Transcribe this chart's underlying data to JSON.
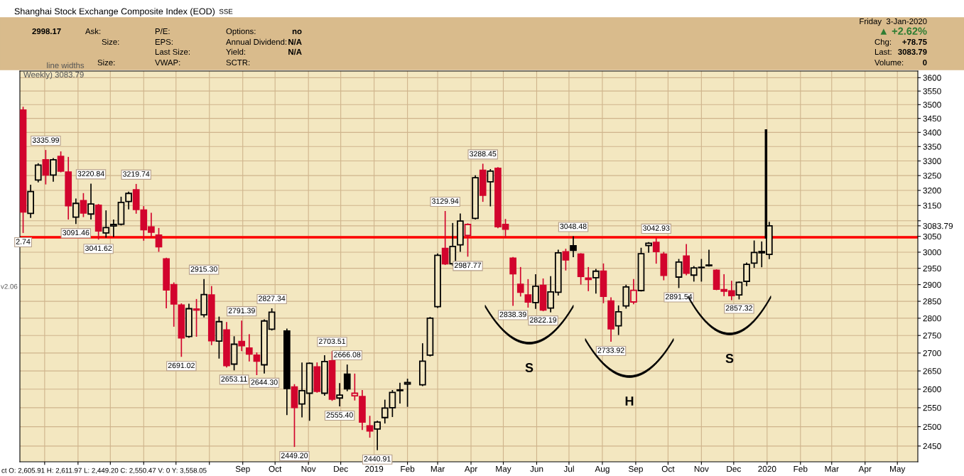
{
  "chart_data": {
    "type": "candlestick",
    "title": "Shanghai Stock Exchange Composite Index (EOD)",
    "subtitle": "SSE",
    "x": [
      "2018-02-09",
      "2018-02-16",
      "2018-02-23",
      "2018-03-02",
      "2018-03-09",
      "2018-03-16",
      "2018-03-23",
      "2018-03-30",
      "2018-04-06",
      "2018-04-13",
      "2018-04-20",
      "2018-04-27",
      "2018-05-04",
      "2018-05-11",
      "2018-05-18",
      "2018-05-25",
      "2018-06-01",
      "2018-06-08",
      "2018-06-15",
      "2018-06-22",
      "2018-06-29",
      "2018-07-06",
      "2018-07-13",
      "2018-07-20",
      "2018-07-27",
      "2018-08-03",
      "2018-08-10",
      "2018-08-17",
      "2018-08-24",
      "2018-08-31",
      "2018-09-07",
      "2018-09-14",
      "2018-09-21",
      "2018-09-28",
      "2018-10-12",
      "2018-10-19",
      "2018-10-26",
      "2018-11-02",
      "2018-11-09",
      "2018-11-16",
      "2018-11-23",
      "2018-11-30",
      "2018-12-07",
      "2018-12-14",
      "2018-12-21",
      "2018-12-28",
      "2019-01-04",
      "2019-01-11",
      "2019-01-18",
      "2019-01-25",
      "2019-02-01",
      "2019-02-15",
      "2019-02-22",
      "2019-03-01",
      "2019-03-08",
      "2019-03-15",
      "2019-03-22",
      "2019-03-29",
      "2019-04-05",
      "2019-04-12",
      "2019-04-19",
      "2019-04-26",
      "2019-05-03",
      "2019-05-10",
      "2019-05-17",
      "2019-05-24",
      "2019-05-31",
      "2019-06-07",
      "2019-06-14",
      "2019-06-21",
      "2019-06-28",
      "2019-07-05",
      "2019-07-12",
      "2019-07-19",
      "2019-07-26",
      "2019-08-02",
      "2019-08-09",
      "2019-08-16",
      "2019-08-23",
      "2019-08-30",
      "2019-09-06",
      "2019-09-13",
      "2019-09-20",
      "2019-09-27",
      "2019-10-11",
      "2019-10-18",
      "2019-10-25",
      "2019-11-01",
      "2019-11-08",
      "2019-11-15",
      "2019-11-22",
      "2019-11-29",
      "2019-12-06",
      "2019-12-13",
      "2019-12-20",
      "2019-12-27",
      "2020-01-03"
    ],
    "ohlc": [
      [
        3480,
        3490,
        3062.74,
        3129
      ],
      [
        3124,
        3217,
        3111,
        3196
      ],
      [
        3235,
        3290,
        3229,
        3286
      ],
      [
        3304,
        3335.99,
        3222,
        3252
      ],
      [
        3252,
        3308,
        3231,
        3304
      ],
      [
        3316,
        3331,
        3263,
        3265
      ],
      [
        3262,
        3312,
        3106,
        3149
      ],
      [
        3112,
        3171,
        3091.46,
        3157
      ],
      [
        3166,
        3189,
        3114,
        3125
      ],
      [
        3122,
        3220.84,
        3106,
        3155
      ],
      [
        3151,
        3153,
        3041.62,
        3067
      ],
      [
        3061,
        3132,
        3048,
        3078
      ],
      [
        3083,
        3102,
        3050,
        3088
      ],
      [
        3089,
        3177,
        3087,
        3160
      ],
      [
        3163,
        3194,
        3139,
        3190
      ],
      [
        3202,
        3219.74,
        3125,
        3137
      ],
      [
        3135,
        3146,
        3038,
        3071
      ],
      [
        3080,
        3124,
        3048,
        3063
      ],
      [
        3054,
        3075,
        3003,
        3017
      ],
      [
        2979,
        2981,
        2831,
        2884
      ],
      [
        2900,
        2905,
        2777,
        2842
      ],
      [
        2839,
        2842,
        2691.02,
        2743
      ],
      [
        2747,
        2841,
        2745,
        2828
      ],
      [
        2827,
        2855,
        2748,
        2824
      ],
      [
        2810,
        2915.3,
        2804,
        2870
      ],
      [
        2869,
        2894,
        2724,
        2735
      ],
      [
        2734,
        2803,
        2686,
        2790
      ],
      [
        2766,
        2787,
        2661,
        2665
      ],
      [
        2669,
        2746,
        2653.11,
        2725
      ],
      [
        2733,
        2791.39,
        2707,
        2721
      ],
      [
        2714,
        2752,
        2678,
        2697
      ],
      [
        2694,
        2700,
        2640,
        2677
      ],
      [
        2667,
        2795,
        2644.3,
        2792
      ],
      [
        2768,
        2827.34,
        2766,
        2818
      ],
      [
        2763,
        2768,
        2532,
        2602
      ],
      [
        2605.91,
        2611.97,
        2449.2,
        2550.47
      ],
      [
        2560,
        2672,
        2526,
        2596
      ],
      [
        2589,
        2672,
        2517,
        2671
      ],
      [
        2661,
        2672,
        2592,
        2594
      ],
      [
        2589,
        2692,
        2584,
        2676
      ],
      [
        2678,
        2703.51,
        2570,
        2573
      ],
      [
        2576,
        2615,
        2555.4,
        2584
      ],
      [
        2641,
        2666.08,
        2596,
        2601
      ],
      [
        2582,
        2641,
        2571,
        2589
      ],
      [
        2580,
        2596,
        2493,
        2512
      ],
      [
        2502,
        2527,
        2473,
        2489
      ],
      [
        2494,
        2514,
        2440.91,
        2512
      ],
      [
        2524,
        2570,
        2510,
        2549
      ],
      [
        2550,
        2596,
        2527,
        2591
      ],
      [
        2596,
        2616,
        2563,
        2598
      ],
      [
        2614,
        2627,
        2554,
        2618
      ],
      [
        2612,
        2726,
        2610,
        2677
      ],
      [
        2694,
        2802,
        2692,
        2800
      ],
      [
        2834,
        2994,
        2832,
        2990
      ],
      [
        3012,
        3129.94,
        2962,
        2964
      ],
      [
        2964,
        3091,
        2959,
        3018
      ],
      [
        3023,
        3122,
        3003,
        3099
      ],
      [
        3053,
        3090,
        2987.77,
        3088
      ],
      [
        3108,
        3249,
        3106,
        3243
      ],
      [
        3268,
        3288.45,
        3164,
        3184
      ],
      [
        3229,
        3270,
        3149,
        3265
      ],
      [
        3275,
        3277,
        3078,
        3081
      ],
      [
        3088,
        3104,
        3048,
        3073
      ],
      [
        2981,
        2983,
        2838.39,
        2933
      ],
      [
        2901,
        2952,
        2866,
        2877
      ],
      [
        2869,
        2915,
        2833,
        2848
      ],
      [
        2846,
        2930,
        2829,
        2895
      ],
      [
        2898,
        2917,
        2822.19,
        2824
      ],
      [
        2830,
        2924,
        2819,
        2878
      ],
      [
        2877,
        3006,
        2869,
        2998
      ],
      [
        3001,
        3009,
        2945,
        2976
      ],
      [
        3020,
        3048.48,
        2986,
        3006
      ],
      [
        2994,
        2995,
        2902,
        2925
      ],
      [
        2920,
        2952,
        2882,
        2916
      ],
      [
        2921,
        2946,
        2875,
        2941
      ],
      [
        2941,
        2963,
        2846,
        2865
      ],
      [
        2851,
        2860,
        2733.92,
        2769
      ],
      [
        2778,
        2836,
        2753,
        2819
      ],
      [
        2836,
        2898,
        2830,
        2893
      ],
      [
        2848,
        2915,
        2843,
        2883
      ],
      [
        2882,
        3012,
        2881,
        2995
      ],
      [
        3021,
        3030,
        3000,
        3028
      ],
      [
        3031,
        3042.93,
        2966,
        3002
      ],
      [
        2994,
        2999,
        2915,
        2928
      ],
      [
        2923,
        2977,
        2891.54,
        2969
      ],
      [
        2988,
        3024,
        2930,
        2935
      ],
      [
        2929,
        2955,
        2911,
        2951
      ],
      [
        2952,
        2977,
        2911,
        2953
      ],
      [
        2958,
        3006,
        2957,
        2960
      ],
      [
        2944,
        2945,
        2885,
        2886
      ],
      [
        2885,
        2930,
        2867,
        2880
      ],
      [
        2881,
        2910,
        2855,
        2867
      ],
      [
        2869,
        2908,
        2857.32,
        2907
      ],
      [
        2910,
        2966,
        2897,
        2962
      ],
      [
        2966,
        3035,
        2953,
        2999
      ],
      [
        2998,
        3032,
        2955,
        3002
      ],
      [
        2993,
        3095,
        2980,
        3083.79
      ]
    ],
    "colors": [
      "#d2042d",
      "#000000",
      "#000000",
      "#d2042d",
      "#000000",
      "#d2042d",
      "#d2042d",
      "#000000",
      "#d2042d",
      "#000000",
      "#d2042d",
      "#000000",
      "#000000",
      "#000000",
      "#000000",
      "#d2042d",
      "#d2042d",
      "#d2042d",
      "#d2042d",
      "#d2042d",
      "#d2042d",
      "#d2042d",
      "#000000",
      "#d2042d",
      "#000000",
      "#d2042d",
      "#000000",
      "#d2042d",
      "#000000",
      "#d2042d",
      "#d2042d",
      "#d2042d",
      "#000000",
      "#000000",
      "#000000",
      "#d2042d",
      "#000000",
      "#000000",
      "#d2042d",
      "#000000",
      "#d2042d",
      "#000000",
      "#000000",
      "#d2042d",
      "#d2042d",
      "#d2042d",
      "#000000",
      "#000000",
      "#000000",
      "#000000",
      "#000000",
      "#000000",
      "#000000",
      "#000000",
      "#d2042d",
      "#000000",
      "#000000",
      "#d2042d",
      "#000000",
      "#d2042d",
      "#000000",
      "#d2042d",
      "#d2042d",
      "#d2042d",
      "#d2042d",
      "#d2042d",
      "#000000",
      "#d2042d",
      "#000000",
      "#000000",
      "#d2042d",
      "#000000",
      "#d2042d",
      "#d2042d",
      "#000000",
      "#d2042d",
      "#d2042d",
      "#000000",
      "#000000",
      "#d2042d",
      "#000000",
      "#000000",
      "#d2042d",
      "#d2042d",
      "#000000",
      "#d2042d",
      "#000000",
      "#000000",
      "#000000",
      "#d2042d",
      "#d2042d",
      "#d2042d",
      "#000000",
      "#000000",
      "#000000",
      "#000000",
      "#000000"
    ],
    "xlim": [
      "2018-02-06",
      "2020-05-20"
    ],
    "ylim": [
      2410,
      3625
    ],
    "log": true,
    "grid": true,
    "xticks": [
      {
        "value": "2018-03-01",
        "label": null
      },
      {
        "value": "2018-04-01",
        "label": null
      },
      {
        "value": "2018-05-01",
        "label": null
      },
      {
        "value": "2018-06-01",
        "label": null
      },
      {
        "value": "2018-07-01",
        "label": null
      },
      {
        "value": "2018-08-01",
        "label": null
      },
      {
        "value": "2018-09-01",
        "label": "Sep"
      },
      {
        "value": "2018-10-01",
        "label": "Oct"
      },
      {
        "value": "2018-11-01",
        "label": "Nov"
      },
      {
        "value": "2018-12-01",
        "label": "Dec"
      },
      {
        "value": "2019-01-01",
        "label": "2019"
      },
      {
        "value": "2019-02-01",
        "label": "Feb"
      },
      {
        "value": "2019-03-01",
        "label": "Mar"
      },
      {
        "value": "2019-04-01",
        "label": "Apr"
      },
      {
        "value": "2019-05-01",
        "label": "May"
      },
      {
        "value": "2019-06-01",
        "label": "Jun"
      },
      {
        "value": "2019-07-01",
        "label": "Jul"
      },
      {
        "value": "2019-08-01",
        "label": "Aug"
      },
      {
        "value": "2019-09-01",
        "label": "Sep"
      },
      {
        "value": "2019-10-01",
        "label": "Oct"
      },
      {
        "value": "2019-11-01",
        "label": "Nov"
      },
      {
        "value": "2019-12-01",
        "label": "Dec"
      },
      {
        "value": "2020-01-01",
        "label": "2020"
      },
      {
        "value": "2020-02-01",
        "label": "Feb"
      },
      {
        "value": "2020-03-01",
        "label": "Mar"
      },
      {
        "value": "2020-04-01",
        "label": "Apr"
      },
      {
        "value": "2020-05-01",
        "label": "May"
      }
    ],
    "yticks": [
      2450,
      2500,
      2550,
      2600,
      2650,
      2700,
      2750,
      2800,
      2850,
      2900,
      2950,
      3000,
      3050,
      {
        "value": 3083.79,
        "label": "3083.79"
      },
      {
        "value": 3100,
        "label": null
      },
      3150,
      3200,
      3250,
      3300,
      3350,
      3400,
      3450,
      3500,
      3550,
      3600
    ],
    "ref_lines": [
      {
        "axis": "y",
        "value": 3047,
        "color": "#ff0000"
      }
    ],
    "annotations": [
      "2998.17",
      "Ask:",
      "Size:",
      "Size:",
      "P/E:",
      "EPS:",
      "Last Size:",
      "VWAP:",
      "Options:",
      "no",
      "Annual Dividend:",
      "N/A",
      "Yield:",
      "N/A",
      "SCTR:",
      "Friday  3-Jan-2020",
      "▲ +2.62%",
      "Chg:",
      "+78.75",
      "Last:",
      "3083.79",
      "Volume:",
      "0",
      "ct O: 2,605.91 H: 2,611.97 L: 2,449.20 C: 2,550.47 V: 0 Y: 3,558.05",
      "Weekly) 3083.79",
      "v2.06",
      "line widths",
      {
        "text": "2.74",
        "x": "2018-02-09",
        "y": 3062.74
      },
      {
        "text": "3335.99",
        "x": "2018-03-02",
        "y": 3335.99
      },
      {
        "text": "3091.46",
        "x": "2018-03-30",
        "y": 3091.46
      },
      {
        "text": "3220.84",
        "x": "2018-04-13",
        "y": 3220.84
      },
      {
        "text": "3041.62",
        "x": "2018-04-20",
        "y": 3041.62
      },
      {
        "text": "3219.74",
        "x": "2018-05-25",
        "y": 3219.74
      },
      {
        "text": "2691.02",
        "x": "2018-07-06",
        "y": 2691.02
      },
      {
        "text": "2915.30",
        "x": "2018-07-27",
        "y": 2915.3
      },
      {
        "text": "2653.11",
        "x": "2018-08-24",
        "y": 2653.11
      },
      {
        "text": "2791.39",
        "x": "2018-08-31",
        "y": 2791.39
      },
      {
        "text": "2644.30",
        "x": "2018-09-21",
        "y": 2644.3
      },
      {
        "text": "2827.34",
        "x": "2018-09-28",
        "y": 2827.34
      },
      {
        "text": "2449.20",
        "x": "2018-10-19",
        "y": 2449.2
      },
      {
        "text": "2703.51",
        "x": "2018-11-23",
        "y": 2703.51
      },
      {
        "text": "2555.40",
        "x": "2018-11-30",
        "y": 2555.4
      },
      {
        "text": "2666.08",
        "x": "2018-12-07",
        "y": 2666.08
      },
      {
        "text": "2440.91",
        "x": "2019-01-04",
        "y": 2440.91
      },
      {
        "text": "3129.94",
        "x": "2019-03-08",
        "y": 3129.94
      },
      {
        "text": "2987.77",
        "x": "2019-03-29",
        "y": 2987.77
      },
      {
        "text": "3288.45",
        "x": "2019-04-12",
        "y": 3288.45
      },
      {
        "text": "2838.39",
        "x": "2019-05-10",
        "y": 2838.39
      },
      {
        "text": "2822.19",
        "x": "2019-06-07",
        "y": 2822.19
      },
      {
        "text": "3048.48",
        "x": "2019-07-05",
        "y": 3048.48
      },
      {
        "text": "2733.92",
        "x": "2019-08-09",
        "y": 2733.92
      },
      {
        "text": "3042.93",
        "x": "2019-09-20",
        "y": 3042.93
      },
      {
        "text": "2891.54",
        "x": "2019-10-11",
        "y": 2891.54
      },
      {
        "text": "2857.32",
        "x": "2019-12-06",
        "y": 2857.32
      },
      "S",
      "H",
      "S"
    ]
  }
}
